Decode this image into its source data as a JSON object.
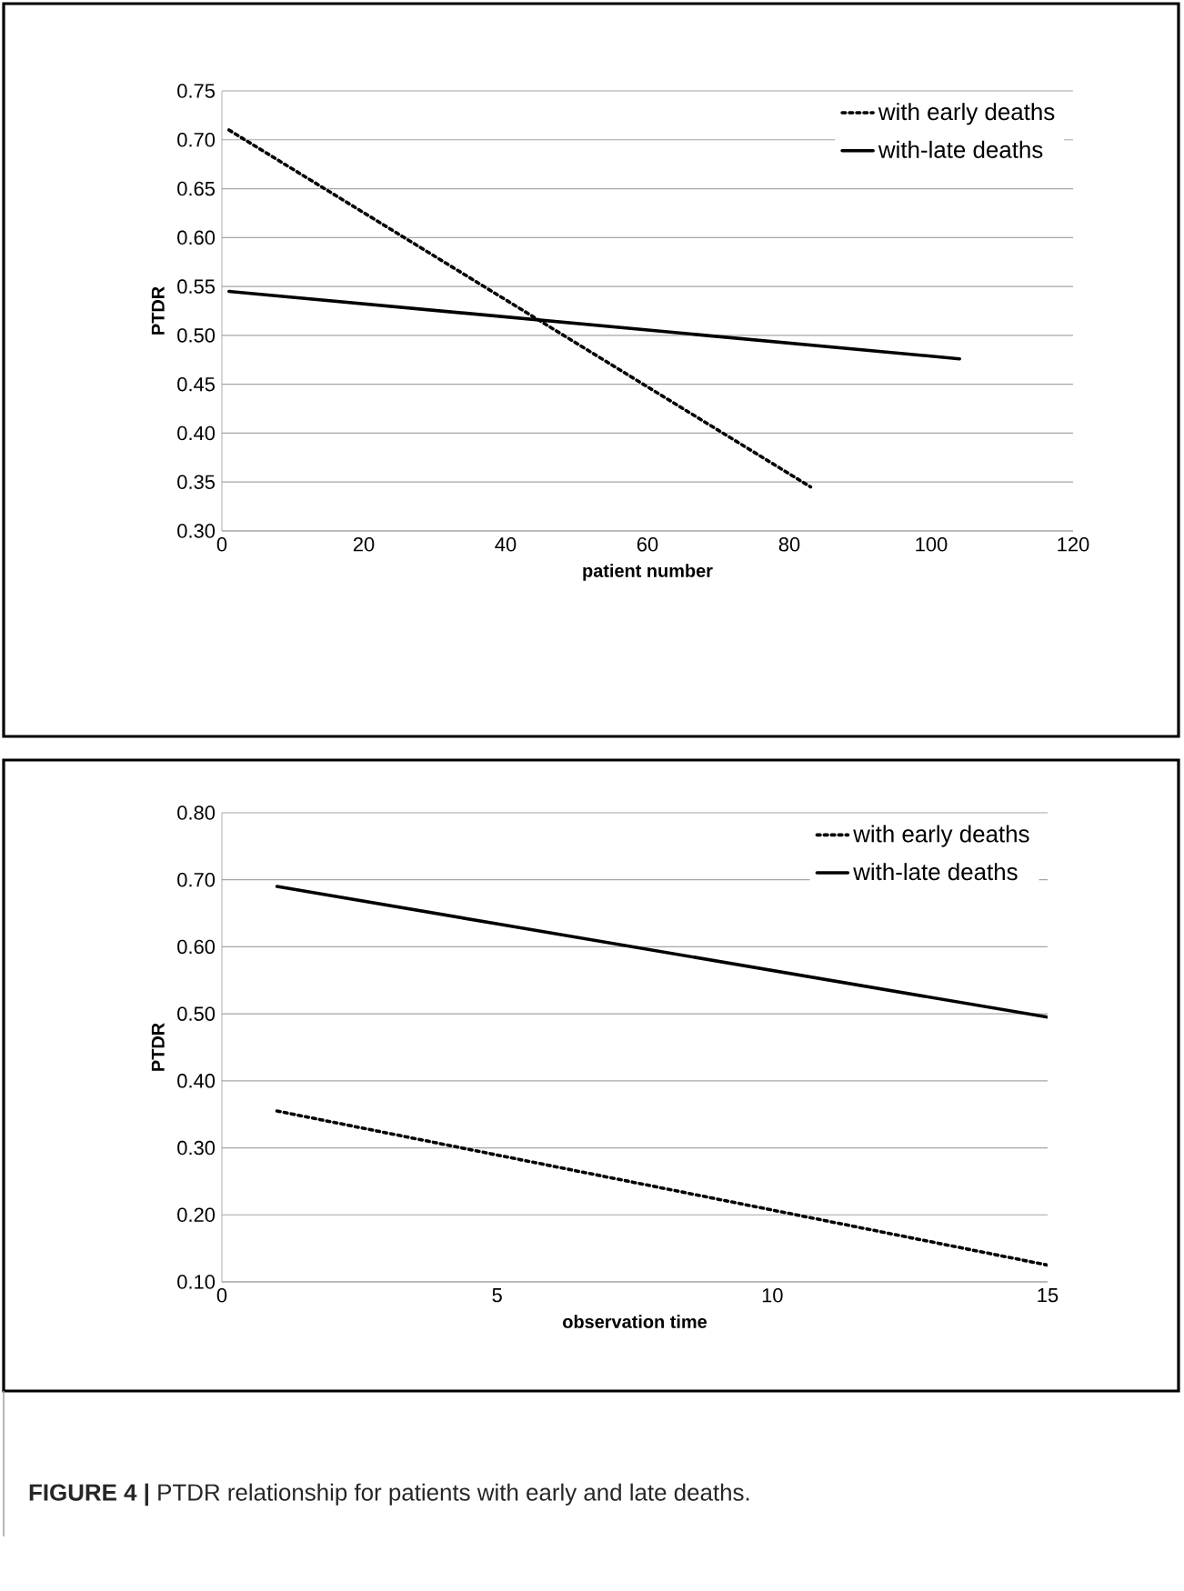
{
  "chart_data": [
    {
      "type": "line",
      "xlabel": "patient number",
      "ylabel": "PTDR",
      "xlim": [
        0,
        120
      ],
      "xticks": [
        0,
        20,
        40,
        60,
        80,
        100,
        120
      ],
      "ylim": [
        0.3,
        0.75
      ],
      "yticks": [
        {
          "value": 0.3,
          "label": "0.30"
        },
        {
          "value": 0.35,
          "label": "0.35"
        },
        {
          "value": 0.4,
          "label": "0.40"
        },
        {
          "value": 0.45,
          "label": "0.45"
        },
        {
          "value": 0.5,
          "label": "0.50"
        },
        {
          "value": 0.55,
          "label": "0.55"
        },
        {
          "value": 0.6,
          "label": "0.60"
        },
        {
          "value": 0.65,
          "label": "0.65"
        },
        {
          "value": 0.7,
          "label": "0.70"
        },
        {
          "value": 0.75,
          "label": "0.75"
        }
      ],
      "grid": "y",
      "legend": "top right",
      "series": [
        {
          "name": "with early deaths",
          "color": "#000000",
          "line_style": "dotted",
          "x": [
            1,
            83
          ],
          "values": [
            0.71,
            0.345
          ]
        },
        {
          "name": "with-late deaths",
          "color": "#000000",
          "line_style": "solid",
          "x": [
            1,
            104
          ],
          "values": [
            0.545,
            0.476
          ]
        }
      ]
    },
    {
      "type": "line",
      "xlabel": "observation time",
      "ylabel": "PTDR",
      "xlim": [
        0,
        15
      ],
      "xticks": [
        0,
        5,
        10,
        15
      ],
      "ylim": [
        0.1,
        0.8
      ],
      "yticks": [
        {
          "value": 0.1,
          "label": "0.10"
        },
        {
          "value": 0.2,
          "label": "0.20"
        },
        {
          "value": 0.3,
          "label": "0.30"
        },
        {
          "value": 0.4,
          "label": "0.40"
        },
        {
          "value": 0.5,
          "label": "0.50"
        },
        {
          "value": 0.6,
          "label": "0.60"
        },
        {
          "value": 0.7,
          "label": "0.70"
        },
        {
          "value": 0.8,
          "label": "0.80"
        }
      ],
      "grid": "y",
      "legend": "top right",
      "annotations": [
        "**FIGURE 4 |** PTDR relationship for patients with early and late deaths."
      ],
      "series": [
        {
          "name": "with early deaths",
          "color": "#000000",
          "line_style": "dotted",
          "x": [
            1,
            15
          ],
          "values": [
            0.355,
            0.125
          ]
        },
        {
          "name": "with-late deaths",
          "color": "#000000",
          "line_style": "solid",
          "x": [
            1,
            15
          ],
          "values": [
            0.69,
            0.495
          ]
        }
      ]
    }
  ]
}
